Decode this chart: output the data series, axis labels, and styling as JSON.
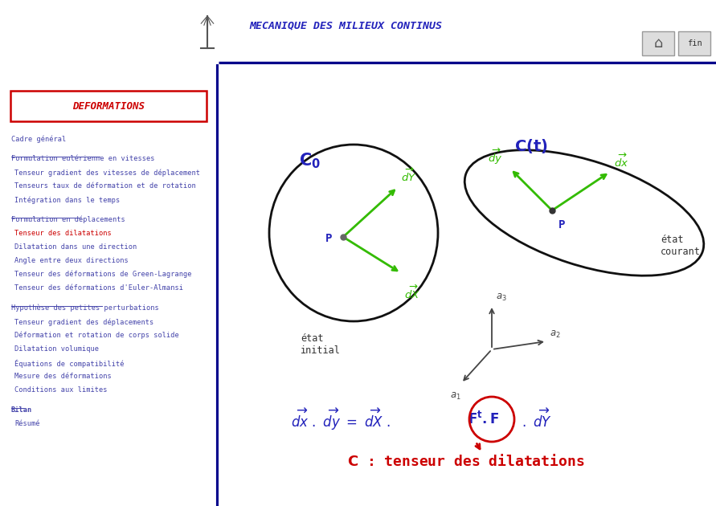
{
  "title": "MECANIQUE DES MILIEUX CONTINUS",
  "title_color": "#2222bb",
  "main_bg": "#ffffff",
  "header_line_color": "#00008b",
  "deformations_text": "DEFORMATIONS",
  "deformations_color": "#cc0000",
  "deformations_box_color": "#cc0000",
  "nav_items": [
    {
      "text": "Cadre général",
      "style": "normal",
      "color": "#4444aa",
      "underline": false,
      "indent": 0
    },
    {
      "text": "",
      "style": "spacer"
    },
    {
      "text": "Formulation eulérienne en vitesses",
      "style": "underline",
      "color": "#4444aa",
      "underline": true,
      "indent": 0
    },
    {
      "text": "Tenseur gradient des vitesses de déplacement",
      "style": "normal",
      "color": "#4444aa",
      "underline": false,
      "indent": 1
    },
    {
      "text": "Tenseurs taux de déformation et de rotation",
      "style": "normal",
      "color": "#4444aa",
      "underline": false,
      "indent": 1
    },
    {
      "text": "Intégration dans le temps",
      "style": "normal",
      "color": "#4444aa",
      "underline": false,
      "indent": 1
    },
    {
      "text": "",
      "style": "spacer"
    },
    {
      "text": "Formulation en déplacements",
      "style": "underline",
      "color": "#4444aa",
      "underline": true,
      "indent": 0
    },
    {
      "text": "Tenseur des dilatations",
      "style": "normal",
      "color": "#cc0000",
      "underline": false,
      "indent": 1
    },
    {
      "text": "Dilatation dans une direction",
      "style": "normal",
      "color": "#4444aa",
      "underline": false,
      "indent": 1
    },
    {
      "text": "Angle entre deux directions",
      "style": "normal",
      "color": "#4444aa",
      "underline": false,
      "indent": 1
    },
    {
      "text": "Tenseur des déformations de Green-Lagrange",
      "style": "normal",
      "color": "#4444aa",
      "underline": false,
      "indent": 1
    },
    {
      "text": "Tenseur des déformations d'Euler-Almansi",
      "style": "normal",
      "color": "#4444aa",
      "underline": false,
      "indent": 1
    },
    {
      "text": "",
      "style": "spacer"
    },
    {
      "text": "Hypothèse des petites perturbations",
      "style": "underline",
      "color": "#4444aa",
      "underline": true,
      "indent": 0
    },
    {
      "text": "Tenseur gradient des déplacements",
      "style": "normal",
      "color": "#4444aa",
      "underline": false,
      "indent": 1
    },
    {
      "text": "Déformation et rotation de corps solide",
      "style": "normal",
      "color": "#4444aa",
      "underline": false,
      "indent": 1
    },
    {
      "text": "Dilatation volumique",
      "style": "normal",
      "color": "#4444aa",
      "underline": false,
      "indent": 1
    },
    {
      "text": "Équations de compatibilité",
      "style": "normal",
      "color": "#4444aa",
      "underline": false,
      "indent": 1
    },
    {
      "text": "Mesure des déformations",
      "style": "normal",
      "color": "#4444aa",
      "underline": false,
      "indent": 1
    },
    {
      "text": "Conditions aux limites",
      "style": "normal",
      "color": "#4444aa",
      "underline": false,
      "indent": 1
    },
    {
      "text": "",
      "style": "spacer"
    },
    {
      "text": "Bilan",
      "style": "underline_bold",
      "color": "#4444aa",
      "underline": true,
      "indent": 0
    },
    {
      "text": "Résumé",
      "style": "normal",
      "color": "#4444aa",
      "underline": false,
      "indent": 1
    }
  ],
  "arrow_color": "#33bb00",
  "ellipse_color": "#111111",
  "label_blue": "#2222bb",
  "label_red": "#cc0000",
  "equation_color": "#2222bb"
}
